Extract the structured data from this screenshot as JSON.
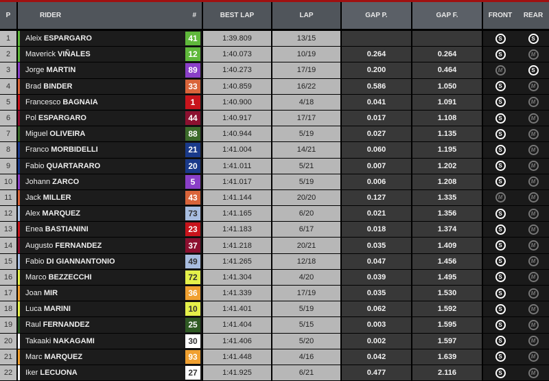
{
  "header": {
    "p": "P",
    "rider": "RIDER",
    "number": "#",
    "best_lap": "BEST LAP",
    "lap": "LAP",
    "gap_p": "GAP P.",
    "gap_f": "GAP F.",
    "front": "FRONT",
    "rear": "REAR"
  },
  "rows": [
    {
      "pos": "1",
      "first": "Aleix",
      "last": "ESPARGARO",
      "num": "41",
      "color": "#5fb83b",
      "text": "#fff",
      "best": "1:39.809",
      "lap": "13/15",
      "gap_p": "",
      "gap_f": "",
      "front": "S",
      "rear": "S"
    },
    {
      "pos": "2",
      "first": "Maverick",
      "last": "VIÑALES",
      "num": "12",
      "color": "#5fb83b",
      "text": "#fff",
      "best": "1:40.073",
      "lap": "10/19",
      "gap_p": "0.264",
      "gap_f": "0.264",
      "front": "S",
      "rear": "M"
    },
    {
      "pos": "3",
      "first": "Jorge",
      "last": "MARTIN",
      "num": "89",
      "color": "#8a3fc8",
      "text": "#fff",
      "best": "1:40.273",
      "lap": "17/19",
      "gap_p": "0.200",
      "gap_f": "0.464",
      "front": "M",
      "rear": "S"
    },
    {
      "pos": "4",
      "first": "Brad",
      "last": "BINDER",
      "num": "33",
      "color": "#d9643a",
      "text": "#fff",
      "best": "1:40.859",
      "lap": "16/22",
      "gap_p": "0.586",
      "gap_f": "1.050",
      "front": "S",
      "rear": "M"
    },
    {
      "pos": "5",
      "first": "Francesco",
      "last": "BAGNAIA",
      "num": "1",
      "color": "#c8141c",
      "text": "#fff",
      "best": "1:40.900",
      "lap": "4/18",
      "gap_p": "0.041",
      "gap_f": "1.091",
      "front": "S",
      "rear": "M"
    },
    {
      "pos": "6",
      "first": "Pol",
      "last": "ESPARGARO",
      "num": "44",
      "color": "#8c1030",
      "text": "#fff",
      "best": "1:40.917",
      "lap": "17/17",
      "gap_p": "0.017",
      "gap_f": "1.108",
      "front": "S",
      "rear": "M"
    },
    {
      "pos": "7",
      "first": "Miguel",
      "last": "OLIVEIRA",
      "num": "88",
      "color": "#3b6a2a",
      "text": "#fff",
      "best": "1:40.944",
      "lap": "5/19",
      "gap_p": "0.027",
      "gap_f": "1.135",
      "front": "S",
      "rear": "M"
    },
    {
      "pos": "8",
      "first": "Franco",
      "last": "MORBIDELLI",
      "num": "21",
      "color": "#1a3a8a",
      "text": "#fff",
      "best": "1:41.004",
      "lap": "14/21",
      "gap_p": "0.060",
      "gap_f": "1.195",
      "front": "S",
      "rear": "M"
    },
    {
      "pos": "9",
      "first": "Fabio",
      "last": "QUARTARARO",
      "num": "20",
      "color": "#1a3a8a",
      "text": "#fff",
      "best": "1:41.011",
      "lap": "5/21",
      "gap_p": "0.007",
      "gap_f": "1.202",
      "front": "S",
      "rear": "M"
    },
    {
      "pos": "10",
      "first": "Johann",
      "last": "ZARCO",
      "num": "5",
      "color": "#8a3fc8",
      "text": "#fff",
      "best": "1:41.017",
      "lap": "5/19",
      "gap_p": "0.006",
      "gap_f": "1.208",
      "front": "S",
      "rear": "M"
    },
    {
      "pos": "11",
      "first": "Jack",
      "last": "MILLER",
      "num": "43",
      "color": "#d9643a",
      "text": "#fff",
      "best": "1:41.144",
      "lap": "20/20",
      "gap_p": "0.127",
      "gap_f": "1.335",
      "front": "M",
      "rear": "M"
    },
    {
      "pos": "12",
      "first": "Alex",
      "last": "MARQUEZ",
      "num": "73",
      "color": "#a8bde0",
      "text": "#333",
      "best": "1:41.165",
      "lap": "6/20",
      "gap_p": "0.021",
      "gap_f": "1.356",
      "front": "S",
      "rear": "M"
    },
    {
      "pos": "13",
      "first": "Enea",
      "last": "BASTIANINI",
      "num": "23",
      "color": "#c8141c",
      "text": "#fff",
      "best": "1:41.183",
      "lap": "6/17",
      "gap_p": "0.018",
      "gap_f": "1.374",
      "front": "S",
      "rear": "M"
    },
    {
      "pos": "14",
      "first": "Augusto",
      "last": "FERNANDEZ",
      "num": "37",
      "color": "#8c1030",
      "text": "#fff",
      "best": "1:41.218",
      "lap": "20/21",
      "gap_p": "0.035",
      "gap_f": "1.409",
      "front": "S",
      "rear": "M"
    },
    {
      "pos": "15",
      "first": "Fabio",
      "last": "DI GIANNANTONIO",
      "num": "49",
      "color": "#a8bde0",
      "text": "#333",
      "best": "1:41.265",
      "lap": "12/18",
      "gap_p": "0.047",
      "gap_f": "1.456",
      "front": "S",
      "rear": "M"
    },
    {
      "pos": "16",
      "first": "Marco",
      "last": "BEZZECCHI",
      "num": "72",
      "color": "#e4f04a",
      "text": "#333",
      "best": "1:41.304",
      "lap": "4/20",
      "gap_p": "0.039",
      "gap_f": "1.495",
      "front": "S",
      "rear": "M"
    },
    {
      "pos": "17",
      "first": "Joan",
      "last": "MIR",
      "num": "36",
      "color": "#f0a030",
      "text": "#fff",
      "best": "1:41.339",
      "lap": "17/19",
      "gap_p": "0.035",
      "gap_f": "1.530",
      "front": "S",
      "rear": "M"
    },
    {
      "pos": "18",
      "first": "Luca",
      "last": "MARINI",
      "num": "10",
      "color": "#e4f04a",
      "text": "#333",
      "best": "1:41.401",
      "lap": "5/19",
      "gap_p": "0.062",
      "gap_f": "1.592",
      "front": "S",
      "rear": "M"
    },
    {
      "pos": "19",
      "first": "Raul",
      "last": "FERNANDEZ",
      "num": "25",
      "color": "#2f5a24",
      "text": "#fff",
      "best": "1:41.404",
      "lap": "5/15",
      "gap_p": "0.003",
      "gap_f": "1.595",
      "front": "S",
      "rear": "M"
    },
    {
      "pos": "20",
      "first": "Takaaki",
      "last": "NAKAGAMI",
      "num": "30",
      "color": "#ffffff",
      "text": "#333",
      "best": "1:41.406",
      "lap": "5/20",
      "gap_p": "0.002",
      "gap_f": "1.597",
      "front": "S",
      "rear": "M"
    },
    {
      "pos": "21",
      "first": "Marc",
      "last": "MARQUEZ",
      "num": "93",
      "color": "#f0a030",
      "text": "#fff",
      "best": "1:41.448",
      "lap": "4/16",
      "gap_p": "0.042",
      "gap_f": "1.639",
      "front": "S",
      "rear": "M"
    },
    {
      "pos": "22",
      "first": "Iker",
      "last": "LECUONA",
      "num": "27",
      "color": "#ffffff",
      "text": "#333",
      "best": "1:41.925",
      "lap": "6/21",
      "gap_p": "0.477",
      "gap_f": "2.116",
      "front": "S",
      "rear": "M"
    }
  ]
}
